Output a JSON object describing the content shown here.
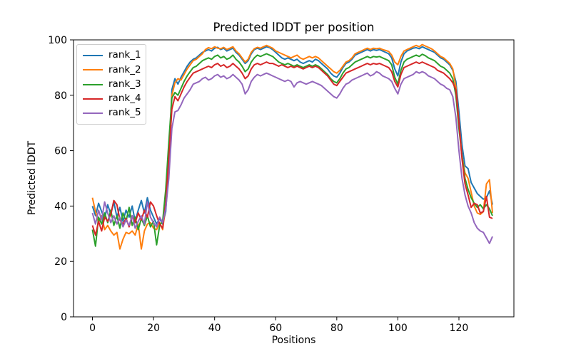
{
  "chart_data": {
    "type": "line",
    "title": "Predicted lDDT per position",
    "xlabel": "Positions",
    "ylabel": "Predicted lDDT",
    "xticks": [
      0,
      20,
      40,
      60,
      80,
      100,
      120
    ],
    "yticks": [
      0,
      20,
      40,
      60,
      80,
      100
    ],
    "xlim": [
      -6.2,
      138.0
    ],
    "ylim": [
      0,
      100
    ],
    "grid": false,
    "legend_position": "upper left",
    "x_start": 0,
    "series": [
      {
        "name": "rank_1",
        "color": "#1f77b4",
        "values": [
          40,
          36.5,
          41,
          38,
          35.5,
          40.5,
          37,
          41.5,
          36,
          39.5,
          34.5,
          38.5,
          36,
          40,
          34.5,
          38.5,
          42,
          37.5,
          43,
          38.5,
          36,
          33.5,
          35.5,
          33.5,
          38,
          55,
          82,
          86,
          84,
          86.5,
          88.5,
          90.5,
          92,
          93,
          93.5,
          94.5,
          95.5,
          96,
          96.5,
          96,
          97,
          97.3,
          96.5,
          97,
          96,
          96.5,
          97,
          95.5,
          94.5,
          93,
          91.5,
          92.5,
          95,
          96.5,
          97,
          96.5,
          97,
          97.5,
          97.2,
          96.5,
          95.5,
          94.5,
          93.5,
          93,
          93.5,
          93,
          92.5,
          93,
          92,
          91.5,
          92,
          92.5,
          92,
          93,
          92.5,
          91.5,
          90.5,
          89.5,
          88,
          87,
          86.5,
          88,
          90,
          91.5,
          92,
          93,
          94.5,
          95,
          95.5,
          96,
          96.5,
          96,
          96.5,
          96.2,
          96.5,
          96,
          95.5,
          95,
          93.5,
          89.5,
          87,
          92,
          95,
          96,
          96.5,
          97,
          97.2,
          96.8,
          97.5,
          97,
          96.5,
          96,
          95.5,
          94.5,
          93.5,
          93,
          92,
          91,
          89,
          85,
          74,
          62,
          54.5,
          53.5,
          48.5,
          46.5,
          44.5,
          43.5,
          42.5,
          43,
          45.5,
          40.5
        ]
      },
      {
        "name": "rank_2",
        "color": "#ff7f0e",
        "values": [
          43,
          38,
          34,
          36.5,
          31.5,
          33,
          31,
          29.5,
          30.5,
          24.5,
          28,
          30.5,
          30,
          31,
          29.5,
          33.5,
          24.5,
          31,
          33.5,
          34,
          32,
          31.5,
          34,
          31.5,
          40,
          58,
          80,
          84.5,
          86,
          85.5,
          87.5,
          89.5,
          91,
          92.5,
          93,
          94,
          95,
          96.5,
          97.2,
          96.8,
          97.5,
          97,
          96.8,
          97.3,
          96.5,
          97,
          97.5,
          96,
          95,
          93.5,
          92,
          93,
          95.5,
          96.8,
          97.3,
          97,
          97.5,
          98,
          97.5,
          97,
          96,
          95.5,
          95,
          94.5,
          94,
          93.5,
          94,
          94.5,
          93.5,
          93,
          93.5,
          94,
          93.5,
          94,
          93.5,
          92.5,
          91.5,
          90.5,
          89.5,
          88.5,
          88,
          89,
          90.5,
          92,
          92.5,
          93.5,
          95,
          95.5,
          96,
          96.5,
          97,
          96.5,
          97,
          96.8,
          97,
          96.5,
          96.2,
          95.8,
          94.5,
          92,
          91,
          94,
          96,
          96.5,
          97,
          97.5,
          98,
          97.5,
          98.3,
          97.8,
          97.3,
          96.8,
          96,
          95,
          94,
          93.5,
          92.5,
          91.5,
          89.5,
          83,
          70,
          58,
          52,
          50,
          45,
          40,
          37.5,
          37,
          38,
          48,
          49.5,
          37.5
        ]
      },
      {
        "name": "rank_3",
        "color": "#2ca02c",
        "values": [
          31.5,
          25.5,
          36,
          33.5,
          37.5,
          34,
          38.5,
          33,
          36.5,
          32,
          37.5,
          34.5,
          39.5,
          33,
          36,
          31.5,
          35.5,
          33,
          36.5,
          32.5,
          34.5,
          26,
          33,
          34.5,
          46,
          63,
          79,
          81,
          80,
          82.5,
          85,
          87,
          88.5,
          90,
          90.5,
          91.5,
          92.5,
          93,
          93.5,
          93,
          94,
          94.5,
          93.5,
          94,
          93,
          93.5,
          94.5,
          93,
          92,
          90.5,
          88.5,
          89.5,
          92,
          93.5,
          94.5,
          94,
          94.5,
          95,
          94.5,
          94,
          93,
          92,
          91.5,
          91,
          91.5,
          91,
          90.5,
          91,
          90.5,
          90,
          90.5,
          91,
          90.5,
          91,
          90.5,
          89.5,
          88.5,
          87.5,
          86,
          85,
          84.5,
          86,
          88,
          89.5,
          90,
          91,
          92,
          92.5,
          93,
          93.5,
          94,
          93.5,
          94,
          93.8,
          94,
          93.5,
          93,
          92.5,
          91,
          86.5,
          84,
          89,
          92,
          93,
          93.5,
          94,
          94.5,
          94,
          94.8,
          94.3,
          93.5,
          93,
          92.5,
          91.5,
          90.5,
          90,
          89,
          88,
          86,
          80,
          68,
          58,
          50,
          46,
          43,
          41,
          39.5,
          40.5,
          39,
          40.5,
          39,
          36.5
        ]
      },
      {
        "name": "rank_4",
        "color": "#d62728",
        "values": [
          33,
          29.5,
          34.5,
          31,
          36,
          34.5,
          37,
          42,
          40.5,
          35,
          33.5,
          35.5,
          32.5,
          36.5,
          34,
          37.5,
          35,
          38.5,
          36,
          41.5,
          40,
          36.5,
          33.5,
          32,
          41,
          57,
          75,
          79.5,
          78,
          80.5,
          83,
          85,
          86.5,
          88,
          88.5,
          89,
          89.5,
          90,
          90.5,
          90,
          91,
          91.5,
          90.5,
          91,
          90,
          90.5,
          91.5,
          90.5,
          89.5,
          88,
          86,
          87,
          89.5,
          91,
          91.5,
          91,
          91.5,
          92,
          91.5,
          91.5,
          91,
          90.5,
          91,
          90.5,
          90,
          90.5,
          90,
          90.5,
          90,
          89.5,
          90,
          90.5,
          90,
          90.5,
          90,
          89,
          88,
          87,
          85.5,
          84,
          83.5,
          85,
          86.5,
          88,
          88.5,
          89,
          89.5,
          90,
          90.5,
          91,
          91.5,
          91,
          91.5,
          91.2,
          91.5,
          91,
          90.5,
          90,
          88.5,
          85,
          83,
          87.5,
          90,
          90.5,
          91,
          91.5,
          92,
          91.5,
          92,
          91.5,
          91,
          90.5,
          90,
          89,
          88.5,
          88,
          87,
          86,
          84.5,
          82,
          70,
          57,
          48,
          44,
          39.5,
          41,
          40.5,
          37.5,
          38,
          43.5,
          36,
          35.5
        ]
      },
      {
        "name": "rank_5",
        "color": "#9467bd",
        "values": [
          37.5,
          33.5,
          38.5,
          35,
          41.5,
          37.5,
          34,
          36.5,
          33.5,
          36,
          32.5,
          35,
          33,
          36.5,
          32,
          34.5,
          36.5,
          33.5,
          41.5,
          36,
          34,
          32.5,
          36,
          34,
          39,
          50,
          68,
          74,
          74.5,
          76.5,
          79,
          80.5,
          82,
          84,
          84.5,
          85,
          86,
          86.5,
          85.5,
          86,
          87,
          87.5,
          86.5,
          87,
          86,
          86.5,
          87.5,
          86.5,
          85.5,
          84,
          80.5,
          82,
          85,
          86.5,
          87.5,
          87,
          87.5,
          88,
          87.5,
          87,
          86.5,
          86,
          85.5,
          85,
          85.5,
          85,
          83,
          84.5,
          85,
          84.5,
          84,
          84.5,
          85,
          84.5,
          84,
          83.5,
          82.5,
          81.5,
          80.5,
          79.5,
          79,
          80.5,
          82.5,
          84,
          84.5,
          85.5,
          86,
          86.5,
          87,
          87.5,
          88,
          87,
          87.5,
          88.5,
          88,
          87,
          86.5,
          86,
          85,
          82.5,
          80.5,
          84,
          86,
          86.5,
          87,
          87.5,
          88.5,
          88,
          88.5,
          88,
          87,
          86.5,
          86,
          85,
          84,
          83.5,
          82.5,
          82,
          79.5,
          72,
          60,
          50,
          44,
          40,
          37.5,
          34,
          32,
          31,
          30.5,
          28.5,
          26.5,
          29
        ]
      }
    ]
  }
}
